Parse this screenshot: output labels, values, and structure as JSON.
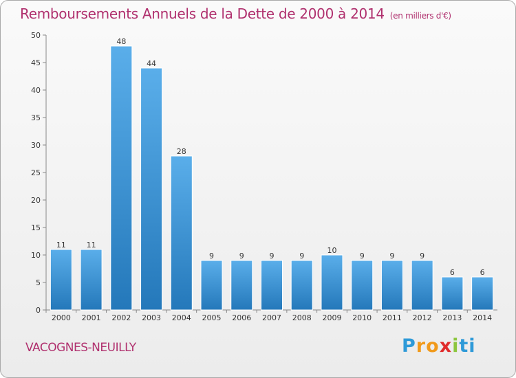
{
  "title": "Remboursements Annuels de la Dette de 2000 à 2014",
  "title_unit": "(en milliers d'€)",
  "commune": "VACOGNES-NEUILLY",
  "brand": [
    "P",
    "r",
    "o",
    "x",
    "i",
    "ti"
  ],
  "colors": {
    "title": "#b0306e",
    "bar_top": "#5aaeea",
    "bar_bottom": "#2478ba"
  },
  "chart_data": {
    "type": "bar",
    "categories": [
      "2000",
      "2001",
      "2002",
      "2003",
      "2004",
      "2005",
      "2006",
      "2007",
      "2008",
      "2009",
      "2010",
      "2011",
      "2012",
      "2013",
      "2014"
    ],
    "values": [
      11,
      11,
      48,
      44,
      28,
      9,
      9,
      9,
      9,
      10,
      9,
      9,
      9,
      6,
      6
    ],
    "title": "Remboursements Annuels de la Dette de 2000 à 2014",
    "xlabel": "",
    "ylabel": "",
    "ylim": [
      0,
      50
    ],
    "yticks": [
      0,
      5,
      10,
      15,
      20,
      25,
      30,
      35,
      40,
      45,
      50
    ],
    "grid": false,
    "data_labels": true
  }
}
